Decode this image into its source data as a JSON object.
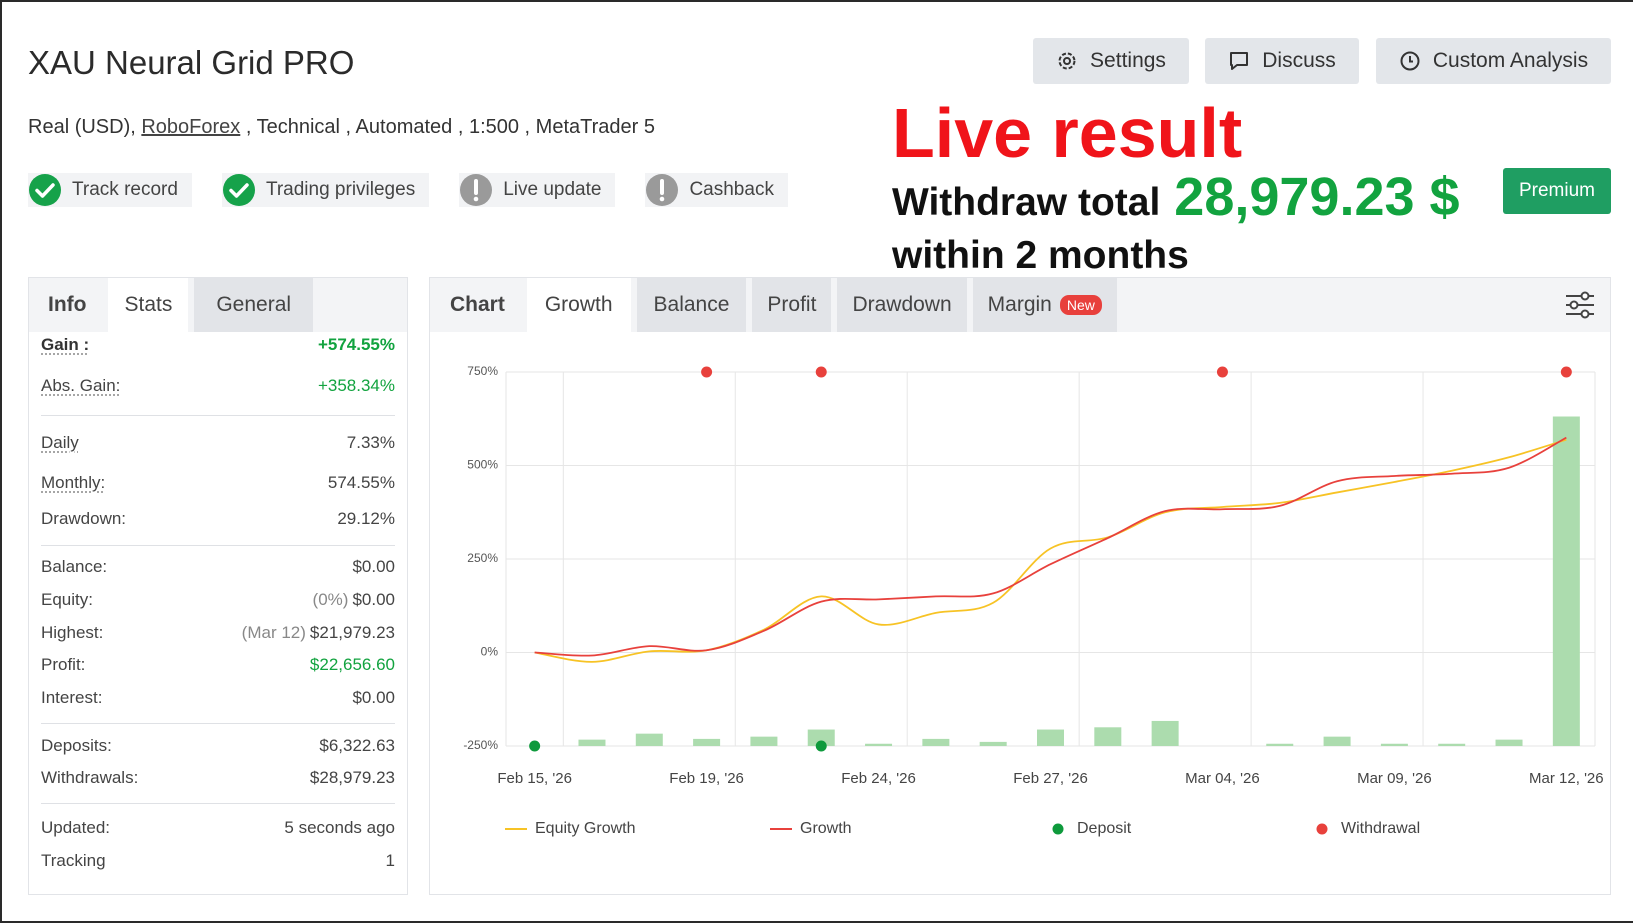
{
  "header": {
    "title": "XAU Neural Grid PRO",
    "buttons": [
      "Settings",
      "Discuss",
      "Custom Analysis"
    ],
    "account": "Real (USD),",
    "broker": "RoboForex",
    "details": ", Technical , Automated , 1:500 , MetaTrader 5",
    "badges": [
      {
        "label": "Track record",
        "status": "ok"
      },
      {
        "label": "Trading privileges",
        "status": "ok"
      },
      {
        "label": "Live update",
        "status": "warn"
      },
      {
        "label": "Cashback",
        "status": "warn"
      }
    ]
  },
  "overlay": {
    "headline": "Live result",
    "withdraw_label": "Withdraw total",
    "withdraw_amount": "28,979.23 $",
    "period": "within 2 months",
    "premium": "Premium"
  },
  "left_tabs": [
    "Info",
    "Stats",
    "General"
  ],
  "stats": [
    [
      {
        "label": "Gain :",
        "value": "+574.55%",
        "positive": true,
        "hint": true,
        "bold": true
      },
      {
        "label": "Abs. Gain:",
        "value": "+358.34%",
        "positive": true,
        "hint": true
      }
    ],
    [
      {
        "label": "Daily",
        "value": "7.33%",
        "hint": true
      },
      {
        "label": "Monthly:",
        "value": "574.55%",
        "hint": true
      },
      {
        "label": "Drawdown:",
        "value": "29.12%"
      }
    ],
    [
      {
        "label": "Balance:",
        "value": "$0.00"
      },
      {
        "label": "Equity:",
        "note": "(0%)",
        "value": "$0.00"
      },
      {
        "label": "Highest:",
        "note": "(Mar 12)",
        "value": "$21,979.23"
      },
      {
        "label": "Profit:",
        "value": "$22,656.60",
        "positive": true
      },
      {
        "label": "Interest:",
        "value": "$0.00"
      }
    ],
    [
      {
        "label": "Deposits:",
        "value": "$6,322.63"
      },
      {
        "label": "Withdrawals:",
        "value": "$28,979.23"
      }
    ],
    [
      {
        "label": "Updated:",
        "value": "5 seconds ago"
      },
      {
        "label": "Tracking",
        "value": "1"
      }
    ]
  ],
  "chart_tabs": [
    "Chart",
    "Growth",
    "Balance",
    "Profit",
    "Drawdown",
    "Margin"
  ],
  "new_badge": "New",
  "chart_data": {
    "type": "line",
    "categories": [
      "Feb 15, '26",
      null,
      null,
      "Feb 19, '26",
      null,
      null,
      "Feb 24, '26",
      null,
      null,
      "Feb 27, '26",
      null,
      null,
      "Mar 04, '26",
      null,
      null,
      "Mar 09, '26",
      null,
      null,
      "Mar 12, '26"
    ],
    "ylim": [
      -250,
      750
    ],
    "yticks": [
      {
        "value": -250,
        "label": "-250%"
      },
      {
        "value": 0,
        "label": "0%"
      },
      {
        "value": 250,
        "label": "250%"
      },
      {
        "value": 500,
        "label": "500%"
      },
      {
        "value": 750,
        "label": "750%"
      }
    ],
    "grid": true,
    "series": [
      {
        "name": "Equity Growth",
        "color": "#f7c325",
        "type": "line",
        "values": [
          0,
          -25,
          3,
          6,
          61,
          150,
          75,
          106,
          133,
          278,
          308,
          375,
          389,
          400,
          428,
          456,
          486,
          522,
          569
        ]
      },
      {
        "name": "Growth",
        "color": "#e8413c",
        "type": "line",
        "values": [
          0,
          -8,
          17,
          6,
          58,
          136,
          142,
          150,
          158,
          236,
          306,
          378,
          383,
          392,
          458,
          472,
          478,
          494,
          574.55
        ]
      },
      {
        "name": "Deposit",
        "color": "#0e9a3c",
        "type": "scatter",
        "values": [
          -250,
          null,
          null,
          null,
          null,
          -250,
          null,
          null,
          null,
          null,
          null,
          null,
          null,
          null,
          null,
          null,
          null,
          null,
          null
        ]
      },
      {
        "name": "Withdrawal",
        "color": "#e8413c",
        "type": "scatter",
        "values": [
          null,
          null,
          null,
          750,
          null,
          750,
          null,
          null,
          null,
          null,
          null,
          null,
          750,
          null,
          null,
          null,
          null,
          null,
          750
        ]
      }
    ],
    "bars": {
      "color": "#acdcae",
      "values": [
        -250,
        -233,
        -217,
        -231,
        -225,
        -206,
        -244,
        -231,
        -239,
        -206,
        -200,
        -183,
        -250,
        -244,
        -225,
        -244,
        -244,
        -233,
        631
      ]
    }
  }
}
